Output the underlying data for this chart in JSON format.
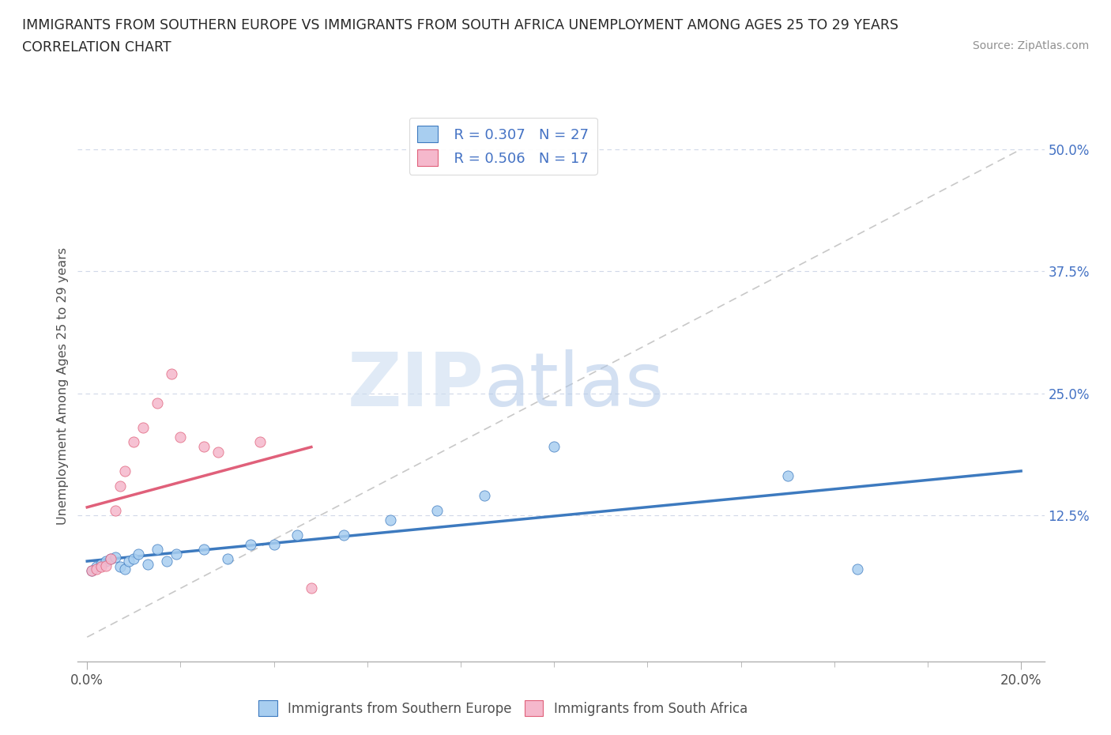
{
  "title_line1": "IMMIGRANTS FROM SOUTHERN EUROPE VS IMMIGRANTS FROM SOUTH AFRICA UNEMPLOYMENT AMONG AGES 25 TO 29 YEARS",
  "title_line2": "CORRELATION CHART",
  "source_text": "Source: ZipAtlas.com",
  "ylabel": "Unemployment Among Ages 25 to 29 years",
  "xlim": [
    0.0,
    0.2
  ],
  "ylim": [
    0.0,
    0.54
  ],
  "ytick_labels": [
    "12.5%",
    "25.0%",
    "37.5%",
    "50.0%"
  ],
  "ytick_positions": [
    0.125,
    0.25,
    0.375,
    0.5
  ],
  "watermark_zip": "ZIP",
  "watermark_atlas": "atlas",
  "legend_blue_label": "Immigrants from Southern Europe",
  "legend_pink_label": "Immigrants from South Africa",
  "blue_R": "R = 0.307",
  "blue_N": "N = 27",
  "pink_R": "R = 0.506",
  "pink_N": "N = 17",
  "blue_color": "#a8cef0",
  "pink_color": "#f5b8cc",
  "blue_line_color": "#3d7abf",
  "pink_line_color": "#e0607a",
  "dashed_line_color": "#c8c8c8",
  "grid_color": "#d0d8e8",
  "blue_scatter_x": [
    0.001,
    0.002,
    0.003,
    0.004,
    0.005,
    0.006,
    0.007,
    0.008,
    0.009,
    0.01,
    0.011,
    0.013,
    0.015,
    0.017,
    0.019,
    0.025,
    0.03,
    0.035,
    0.04,
    0.045,
    0.055,
    0.065,
    0.075,
    0.085,
    0.1,
    0.15,
    0.165
  ],
  "blue_scatter_y": [
    0.068,
    0.072,
    0.075,
    0.078,
    0.08,
    0.082,
    0.072,
    0.07,
    0.078,
    0.08,
    0.085,
    0.075,
    0.09,
    0.078,
    0.085,
    0.09,
    0.08,
    0.095,
    0.095,
    0.105,
    0.105,
    0.12,
    0.13,
    0.145,
    0.195,
    0.165,
    0.07
  ],
  "pink_scatter_x": [
    0.001,
    0.002,
    0.003,
    0.004,
    0.005,
    0.006,
    0.007,
    0.008,
    0.01,
    0.012,
    0.015,
    0.018,
    0.02,
    0.025,
    0.028,
    0.037,
    0.048
  ],
  "pink_scatter_y": [
    0.068,
    0.07,
    0.072,
    0.073,
    0.08,
    0.13,
    0.155,
    0.17,
    0.2,
    0.215,
    0.24,
    0.27,
    0.205,
    0.195,
    0.19,
    0.2,
    0.05
  ]
}
